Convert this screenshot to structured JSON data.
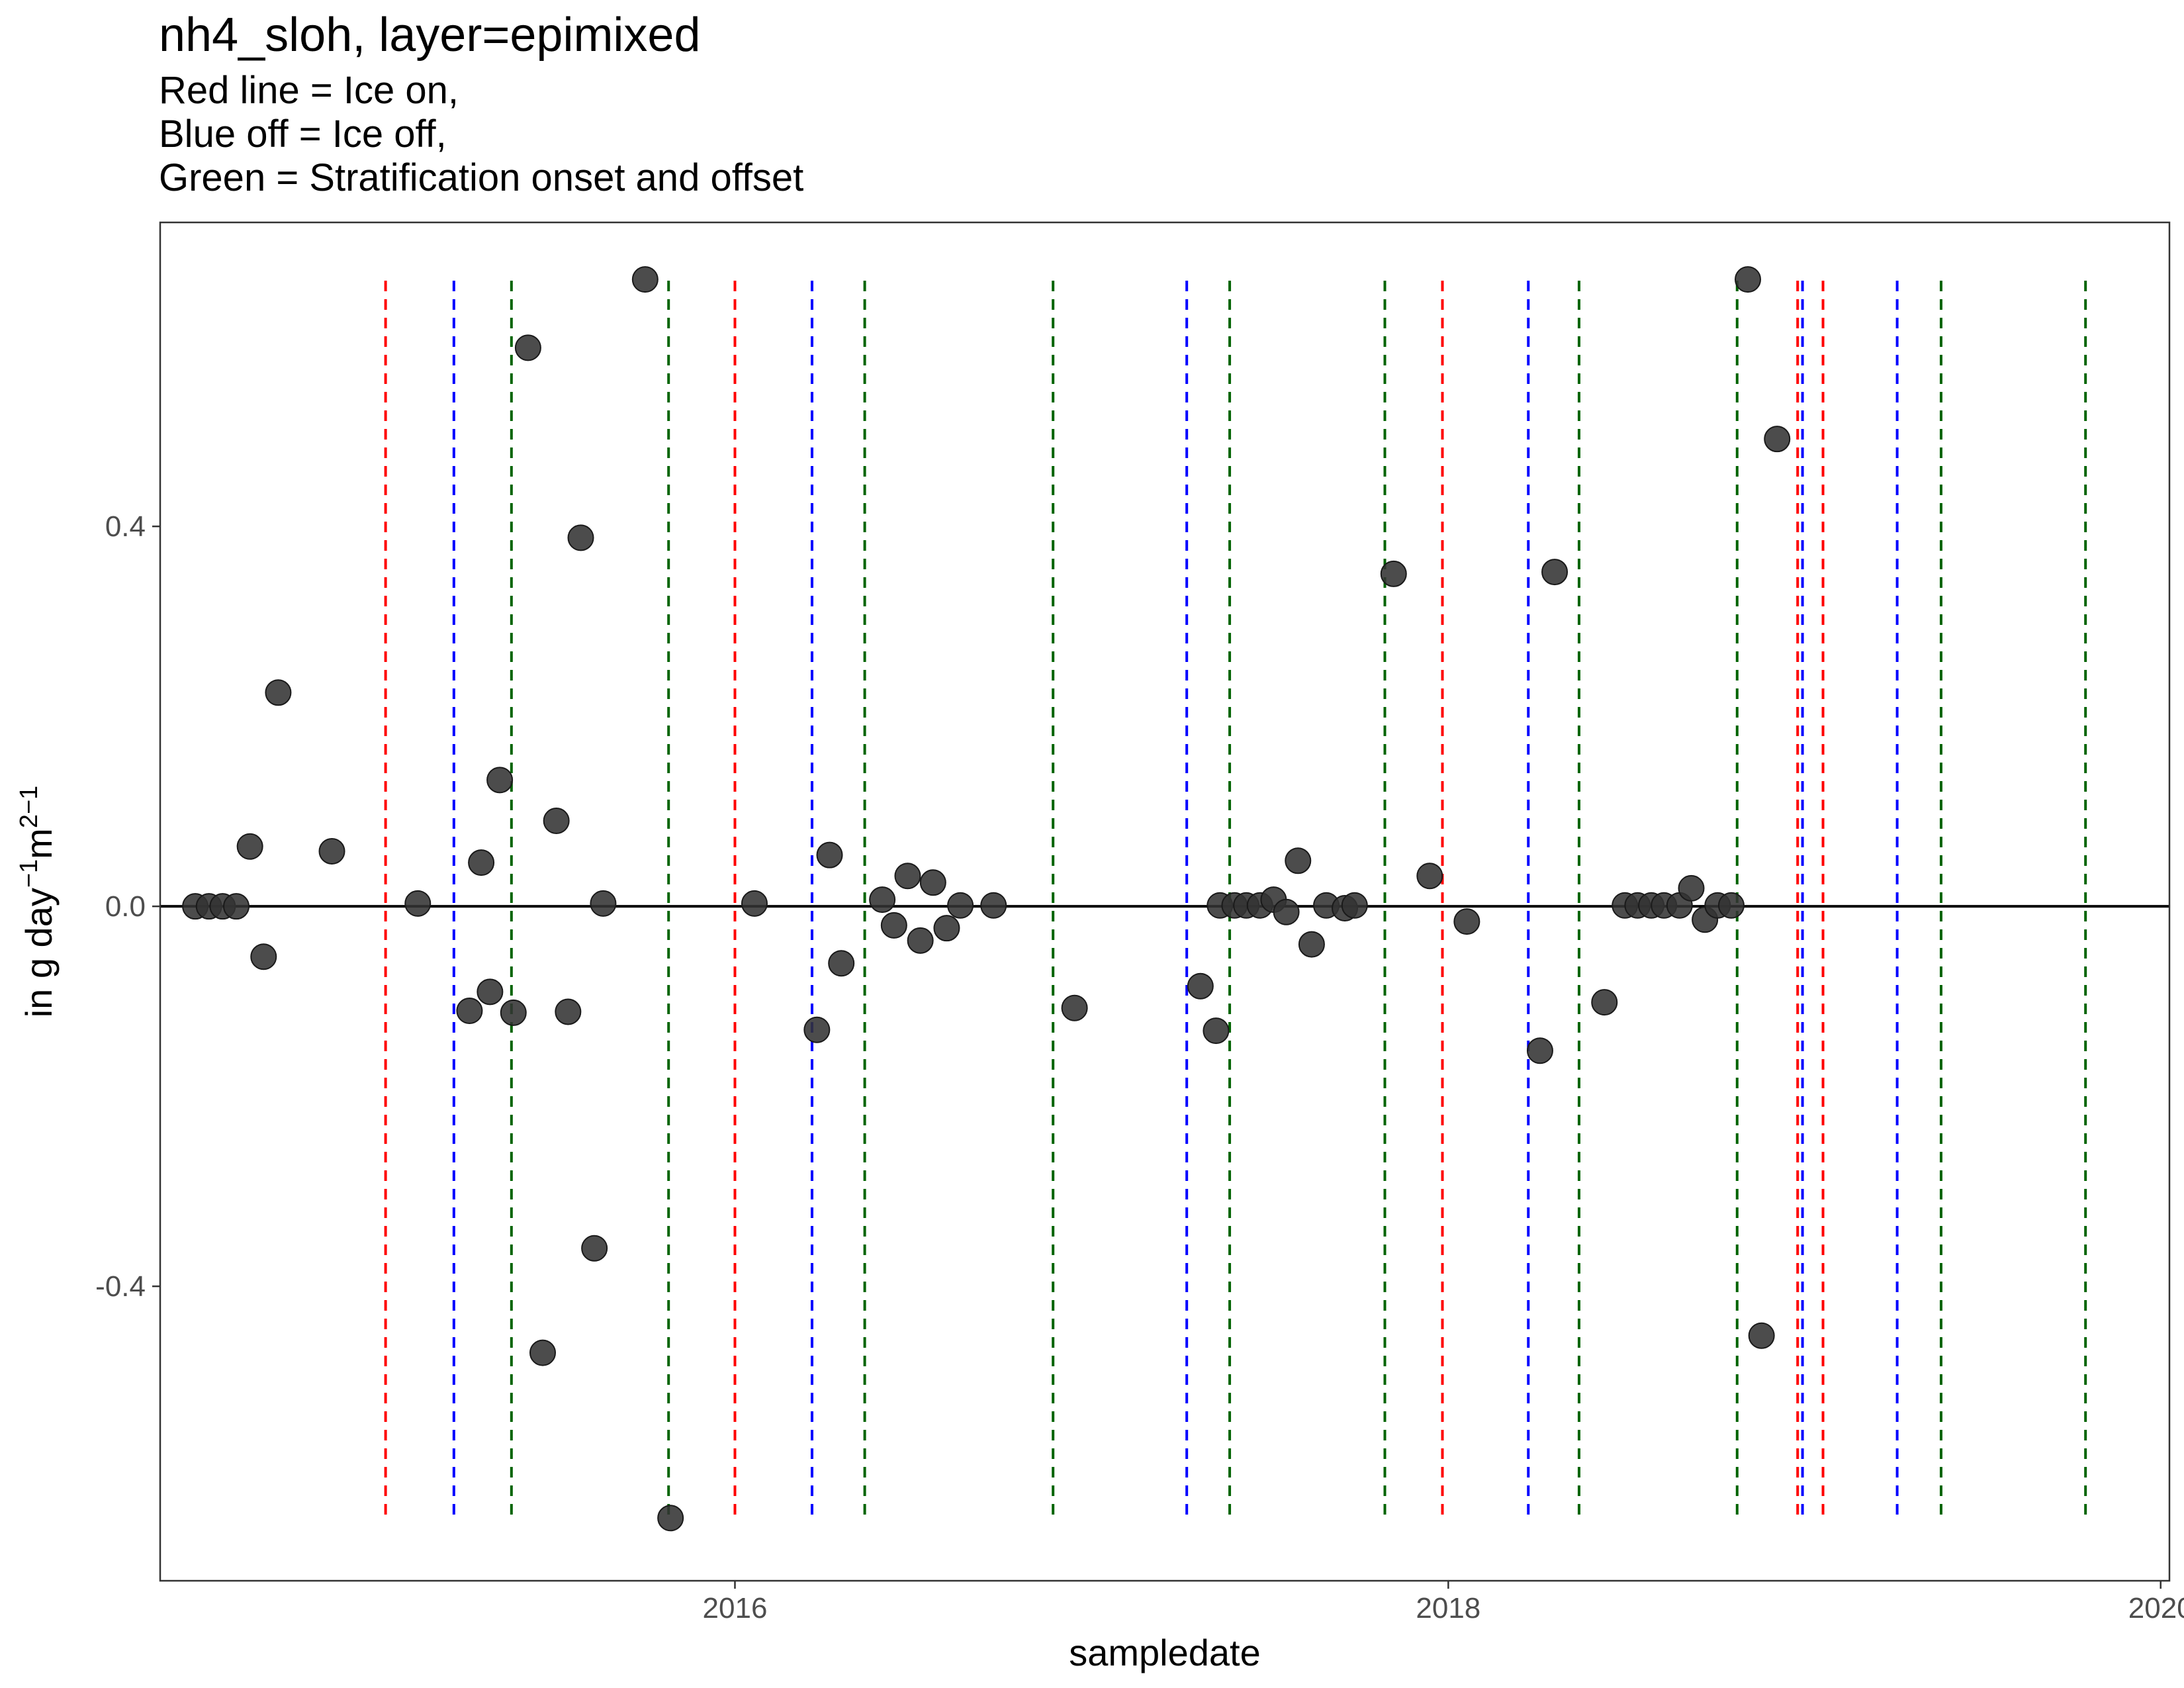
{
  "chart_data": {
    "type": "scatter",
    "title": "nh4_sloh, layer=epimixed",
    "subtitle_lines": [
      "Red line = Ice on,",
      "Blue off = Ice off,",
      "Green = Stratification onset and offset"
    ],
    "xlabel": "sampledate",
    "ylabel": "in g day",
    "ylabel_sup1": "−1",
    "ylabel_mid": "m",
    "ylabel_sup2": "2−1",
    "x_ticks": [
      "2016",
      "2018",
      "2020"
    ],
    "y_ticks": [
      "-0.4",
      "0.0",
      "0.4"
    ],
    "xlim": [
      "2014-05-22",
      "2020-01-10"
    ],
    "ylim": [
      -0.71,
      0.72
    ],
    "grid": false,
    "zero_line": true,
    "point_color": "#333333",
    "reference_line_colors": {
      "ice_on": "#ff0000",
      "ice_off": "#0000ff",
      "stratification": "#006400"
    },
    "vlines": {
      "ice_on": [
        "2015-01-08",
        "2016-01-01",
        "2017-12-26",
        "2018-12-25",
        "2019-01-20"
      ],
      "ice_off": [
        "2015-03-19",
        "2016-03-20",
        "2017-04-08",
        "2018-03-24",
        "2018-12-30",
        "2019-04-06"
      ],
      "stratification": [
        "2015-05-17",
        "2015-10-25",
        "2016-05-13",
        "2016-11-22",
        "2017-05-22",
        "2017-10-28",
        "2018-05-15",
        "2018-10-24",
        "2019-05-21",
        "2019-10-16"
      ]
    },
    "points": [
      {
        "x": "2014-06-27",
        "y": 0.0
      },
      {
        "x": "2014-07-11",
        "y": 0.0
      },
      {
        "x": "2014-07-25",
        "y": 0.0
      },
      {
        "x": "2014-08-08",
        "y": 0.0
      },
      {
        "x": "2014-08-22",
        "y": 0.063
      },
      {
        "x": "2014-09-05",
        "y": -0.053
      },
      {
        "x": "2014-09-20",
        "y": 0.225
      },
      {
        "x": "2014-11-14",
        "y": 0.058
      },
      {
        "x": "2015-02-10",
        "y": 0.003
      },
      {
        "x": "2015-04-04",
        "y": -0.11
      },
      {
        "x": "2015-04-16",
        "y": 0.046
      },
      {
        "x": "2015-04-25",
        "y": -0.09
      },
      {
        "x": "2015-05-05",
        "y": 0.133
      },
      {
        "x": "2015-05-19",
        "y": -0.112
      },
      {
        "x": "2015-06-03",
        "y": 0.588
      },
      {
        "x": "2015-06-18",
        "y": -0.47
      },
      {
        "x": "2015-07-02",
        "y": 0.09
      },
      {
        "x": "2015-07-14",
        "y": -0.111
      },
      {
        "x": "2015-07-27",
        "y": 0.388
      },
      {
        "x": "2015-08-10",
        "y": -0.36
      },
      {
        "x": "2015-08-19",
        "y": 0.003
      },
      {
        "x": "2015-10-01",
        "y": 0.66
      },
      {
        "x": "2015-10-27",
        "y": -0.644
      },
      {
        "x": "2016-01-21",
        "y": 0.003
      },
      {
        "x": "2016-03-25",
        "y": -0.13
      },
      {
        "x": "2016-04-07",
        "y": 0.054
      },
      {
        "x": "2016-04-19",
        "y": -0.06
      },
      {
        "x": "2016-05-31",
        "y": 0.007
      },
      {
        "x": "2016-06-12",
        "y": -0.02
      },
      {
        "x": "2016-06-26",
        "y": 0.032
      },
      {
        "x": "2016-07-09",
        "y": -0.036
      },
      {
        "x": "2016-07-22",
        "y": 0.025
      },
      {
        "x": "2016-08-05",
        "y": -0.023
      },
      {
        "x": "2016-08-19",
        "y": 0.001
      },
      {
        "x": "2016-09-22",
        "y": 0.001
      },
      {
        "x": "2016-12-14",
        "y": -0.107
      },
      {
        "x": "2017-04-22",
        "y": -0.084
      },
      {
        "x": "2017-05-08",
        "y": -0.131
      },
      {
        "x": "2017-05-12",
        "y": 0.001
      },
      {
        "x": "2017-05-27",
        "y": 0.001
      },
      {
        "x": "2017-06-08",
        "y": 0.001
      },
      {
        "x": "2017-06-22",
        "y": 0.001
      },
      {
        "x": "2017-07-06",
        "y": 0.007
      },
      {
        "x": "2017-07-19",
        "y": -0.006
      },
      {
        "x": "2017-07-31",
        "y": 0.048
      },
      {
        "x": "2017-08-14",
        "y": -0.04
      },
      {
        "x": "2017-08-29",
        "y": 0.001
      },
      {
        "x": "2017-09-17",
        "y": -0.002
      },
      {
        "x": "2017-09-27",
        "y": 0.001
      },
      {
        "x": "2017-11-06",
        "y": 0.35
      },
      {
        "x": "2017-12-13",
        "y": 0.032
      },
      {
        "x": "2018-01-20",
        "y": -0.016
      },
      {
        "x": "2018-04-05",
        "y": -0.152
      },
      {
        "x": "2018-04-20",
        "y": 0.352
      },
      {
        "x": "2018-06-10",
        "y": -0.101
      },
      {
        "x": "2018-07-01",
        "y": 0.001
      },
      {
        "x": "2018-07-14",
        "y": 0.001
      },
      {
        "x": "2018-07-28",
        "y": 0.001
      },
      {
        "x": "2018-08-10",
        "y": 0.001
      },
      {
        "x": "2018-08-26",
        "y": 0.001
      },
      {
        "x": "2018-09-07",
        "y": 0.019
      },
      {
        "x": "2018-09-21",
        "y": -0.014
      },
      {
        "x": "2018-10-04",
        "y": 0.001
      },
      {
        "x": "2018-10-18",
        "y": 0.001
      },
      {
        "x": "2018-11-04",
        "y": 0.66
      },
      {
        "x": "2018-11-18",
        "y": -0.452
      },
      {
        "x": "2018-12-04",
        "y": 0.492
      }
    ]
  }
}
